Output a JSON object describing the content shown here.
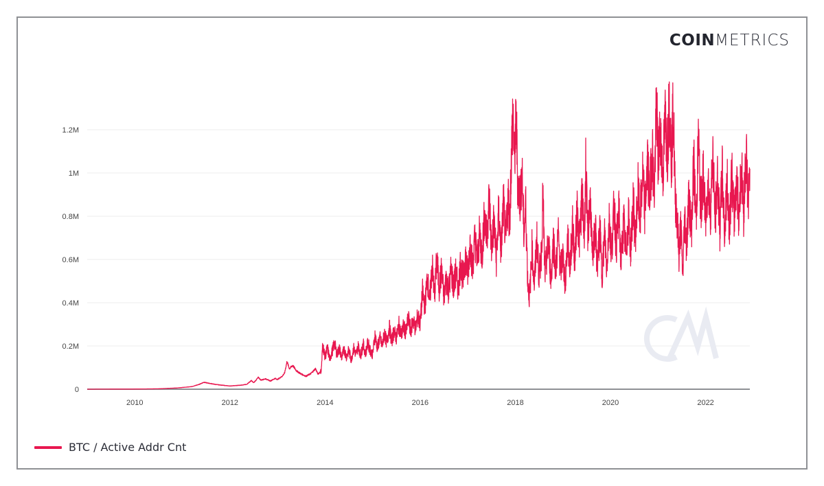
{
  "brand": {
    "bold": "COIN",
    "light": "METRICS",
    "watermark": "CM"
  },
  "colors": {
    "line": "#E8174F",
    "grid": "#ececec",
    "axis": "#8e9094",
    "watermark": "#e9ebf2"
  },
  "legend": {
    "label": "BTC / Active Addr Cnt"
  },
  "chart_data": {
    "type": "line",
    "title": "",
    "xlabel": "",
    "ylabel": "",
    "legend_position": "bottom-left",
    "grid": true,
    "xlim": [
      2009.0,
      2022.93
    ],
    "ylim": [
      0,
      1200000
    ],
    "x_ticks": [
      "2010",
      "2012",
      "2014",
      "2016",
      "2018",
      "2020",
      "2022"
    ],
    "y_ticks": [
      "0",
      "0.2M",
      "0.4M",
      "0.6M",
      "0.8M",
      "1M",
      "1.2M"
    ],
    "series": [
      {
        "name": "BTC / Active Addr Cnt",
        "color": "#E8174F",
        "points": [
          [
            2009.0,
            0
          ],
          [
            2009.5,
            500
          ],
          [
            2010.0,
            800
          ],
          [
            2010.5,
            2000
          ],
          [
            2010.9,
            6000
          ],
          [
            2011.2,
            12000
          ],
          [
            2011.35,
            22000
          ],
          [
            2011.45,
            32000
          ],
          [
            2011.55,
            28000
          ],
          [
            2011.7,
            22000
          ],
          [
            2011.9,
            17000
          ],
          [
            2012.0,
            15000
          ],
          [
            2012.2,
            18000
          ],
          [
            2012.35,
            22000
          ],
          [
            2012.45,
            40000
          ],
          [
            2012.5,
            30000
          ],
          [
            2012.6,
            55000
          ],
          [
            2012.65,
            42000
          ],
          [
            2012.75,
            48000
          ],
          [
            2012.85,
            38000
          ],
          [
            2012.95,
            50000
          ],
          [
            2013.0,
            45000
          ],
          [
            2013.1,
            60000
          ],
          [
            2013.15,
            75000
          ],
          [
            2013.2,
            128000
          ],
          [
            2013.25,
            95000
          ],
          [
            2013.32,
            110000
          ],
          [
            2013.4,
            85000
          ],
          [
            2013.5,
            70000
          ],
          [
            2013.6,
            60000
          ],
          [
            2013.7,
            72000
          ],
          [
            2013.8,
            95000
          ],
          [
            2013.85,
            70000
          ],
          [
            2013.92,
            85000
          ],
          [
            2013.95,
            205000
          ],
          [
            2014.0,
            150000
          ],
          [
            2014.05,
            190000
          ],
          [
            2014.1,
            140000
          ],
          [
            2014.15,
            175000
          ],
          [
            2014.2,
            215000
          ],
          [
            2014.25,
            160000
          ],
          [
            2014.3,
            190000
          ],
          [
            2014.35,
            145000
          ],
          [
            2014.4,
            185000
          ],
          [
            2014.45,
            150000
          ],
          [
            2014.5,
            180000
          ],
          [
            2014.55,
            135000
          ],
          [
            2014.6,
            190000
          ],
          [
            2014.65,
            160000
          ],
          [
            2014.7,
            200000
          ],
          [
            2014.75,
            155000
          ],
          [
            2014.8,
            210000
          ],
          [
            2014.85,
            165000
          ],
          [
            2014.9,
            215000
          ],
          [
            2014.95,
            180000
          ],
          [
            2015.0,
            160000
          ],
          [
            2015.05,
            250000
          ],
          [
            2015.1,
            190000
          ],
          [
            2015.15,
            240000
          ],
          [
            2015.2,
            200000
          ],
          [
            2015.25,
            260000
          ],
          [
            2015.3,
            210000
          ],
          [
            2015.35,
            290000
          ],
          [
            2015.4,
            220000
          ],
          [
            2015.45,
            270000
          ],
          [
            2015.5,
            235000
          ],
          [
            2015.55,
            300000
          ],
          [
            2015.6,
            250000
          ],
          [
            2015.65,
            290000
          ],
          [
            2015.7,
            260000
          ],
          [
            2015.75,
            330000
          ],
          [
            2015.8,
            270000
          ],
          [
            2015.85,
            320000
          ],
          [
            2015.9,
            280000
          ],
          [
            2015.95,
            340000
          ],
          [
            2016.0,
            300000
          ],
          [
            2016.05,
            450000
          ],
          [
            2016.1,
            380000
          ],
          [
            2016.15,
            520000
          ],
          [
            2016.2,
            400000
          ],
          [
            2016.25,
            580000
          ],
          [
            2016.3,
            430000
          ],
          [
            2016.35,
            600000
          ],
          [
            2016.4,
            470000
          ],
          [
            2016.45,
            550000
          ],
          [
            2016.5,
            420000
          ],
          [
            2016.55,
            520000
          ],
          [
            2016.6,
            450000
          ],
          [
            2016.65,
            560000
          ],
          [
            2016.7,
            470000
          ],
          [
            2016.75,
            540000
          ],
          [
            2016.8,
            460000
          ],
          [
            2016.85,
            590000
          ],
          [
            2016.9,
            500000
          ],
          [
            2016.95,
            620000
          ],
          [
            2017.0,
            530000
          ],
          [
            2017.05,
            680000
          ],
          [
            2017.1,
            560000
          ],
          [
            2017.15,
            700000
          ],
          [
            2017.2,
            590000
          ],
          [
            2017.25,
            720000
          ],
          [
            2017.3,
            620000
          ],
          [
            2017.35,
            800000
          ],
          [
            2017.4,
            700000
          ],
          [
            2017.45,
            890000
          ],
          [
            2017.5,
            650000
          ],
          [
            2017.55,
            780000
          ],
          [
            2017.6,
            600000
          ],
          [
            2017.65,
            820000
          ],
          [
            2017.7,
            640000
          ],
          [
            2017.75,
            860000
          ],
          [
            2017.8,
            680000
          ],
          [
            2017.85,
            900000
          ],
          [
            2017.88,
            760000
          ],
          [
            2017.92,
            1100000
          ],
          [
            2017.95,
            1290000
          ],
          [
            2017.98,
            1050000
          ],
          [
            2018.02,
            1250000
          ],
          [
            2018.05,
            950000
          ],
          [
            2018.1,
            880000
          ],
          [
            2018.14,
            1000000
          ],
          [
            2018.18,
            720000
          ],
          [
            2018.22,
            850000
          ],
          [
            2018.26,
            500000
          ],
          [
            2018.3,
            420000
          ],
          [
            2018.35,
            650000
          ],
          [
            2018.4,
            480000
          ],
          [
            2018.45,
            700000
          ],
          [
            2018.5,
            520000
          ],
          [
            2018.55,
            640000
          ],
          [
            2018.58,
            900000
          ],
          [
            2018.62,
            530000
          ],
          [
            2018.7,
            680000
          ],
          [
            2018.75,
            500000
          ],
          [
            2018.8,
            700000
          ],
          [
            2018.85,
            540000
          ],
          [
            2018.9,
            720000
          ],
          [
            2018.95,
            550000
          ],
          [
            2019.0,
            620000
          ],
          [
            2019.05,
            480000
          ],
          [
            2019.1,
            700000
          ],
          [
            2019.15,
            560000
          ],
          [
            2019.2,
            760000
          ],
          [
            2019.25,
            600000
          ],
          [
            2019.3,
            830000
          ],
          [
            2019.35,
            680000
          ],
          [
            2019.4,
            900000
          ],
          [
            2019.45,
            700000
          ],
          [
            2019.48,
            1040000
          ],
          [
            2019.52,
            720000
          ],
          [
            2019.58,
            880000
          ],
          [
            2019.62,
            580000
          ],
          [
            2019.68,
            760000
          ],
          [
            2019.72,
            560000
          ],
          [
            2019.78,
            740000
          ],
          [
            2019.82,
            520000
          ],
          [
            2019.88,
            720000
          ],
          [
            2019.92,
            560000
          ],
          [
            2019.98,
            800000
          ],
          [
            2020.02,
            620000
          ],
          [
            2020.08,
            860000
          ],
          [
            2020.12,
            660000
          ],
          [
            2020.18,
            820000
          ],
          [
            2020.22,
            580000
          ],
          [
            2020.28,
            780000
          ],
          [
            2020.32,
            620000
          ],
          [
            2020.38,
            800000
          ],
          [
            2020.42,
            640000
          ],
          [
            2020.48,
            860000
          ],
          [
            2020.52,
            700000
          ],
          [
            2020.58,
            920000
          ],
          [
            2020.62,
            780000
          ],
          [
            2020.68,
            1000000
          ],
          [
            2020.72,
            820000
          ],
          [
            2020.78,
            1050000
          ],
          [
            2020.82,
            880000
          ],
          [
            2020.88,
            1120000
          ],
          [
            2020.92,
            900000
          ],
          [
            2020.97,
            1340000
          ],
          [
            2021.0,
            1050000
          ],
          [
            2021.05,
            1200000
          ],
          [
            2021.1,
            980000
          ],
          [
            2021.15,
            1250000
          ],
          [
            2021.2,
            1100000
          ],
          [
            2021.24,
            1360000
          ],
          [
            2021.28,
            1050000
          ],
          [
            2021.32,
            1310000
          ],
          [
            2021.36,
            900000
          ],
          [
            2021.4,
            800000
          ],
          [
            2021.44,
            620000
          ],
          [
            2021.48,
            760000
          ],
          [
            2021.52,
            520000
          ],
          [
            2021.56,
            800000
          ],
          [
            2021.6,
            660000
          ],
          [
            2021.65,
            900000
          ],
          [
            2021.7,
            720000
          ],
          [
            2021.75,
            1050000
          ],
          [
            2021.8,
            780000
          ],
          [
            2021.85,
            1160000
          ],
          [
            2021.9,
            820000
          ],
          [
            2021.95,
            1000000
          ],
          [
            2022.0,
            760000
          ],
          [
            2022.05,
            980000
          ],
          [
            2022.1,
            800000
          ],
          [
            2022.15,
            1100000
          ],
          [
            2022.2,
            780000
          ],
          [
            2022.25,
            980000
          ],
          [
            2022.3,
            740000
          ],
          [
            2022.35,
            1000000
          ],
          [
            2022.4,
            720000
          ],
          [
            2022.45,
            960000
          ],
          [
            2022.5,
            760000
          ],
          [
            2022.55,
            1000000
          ],
          [
            2022.6,
            780000
          ],
          [
            2022.65,
            980000
          ],
          [
            2022.7,
            800000
          ],
          [
            2022.75,
            1040000
          ],
          [
            2022.8,
            820000
          ],
          [
            2022.85,
            1110000
          ],
          [
            2022.9,
            850000
          ],
          [
            2022.93,
            1020000
          ]
        ]
      }
    ]
  }
}
